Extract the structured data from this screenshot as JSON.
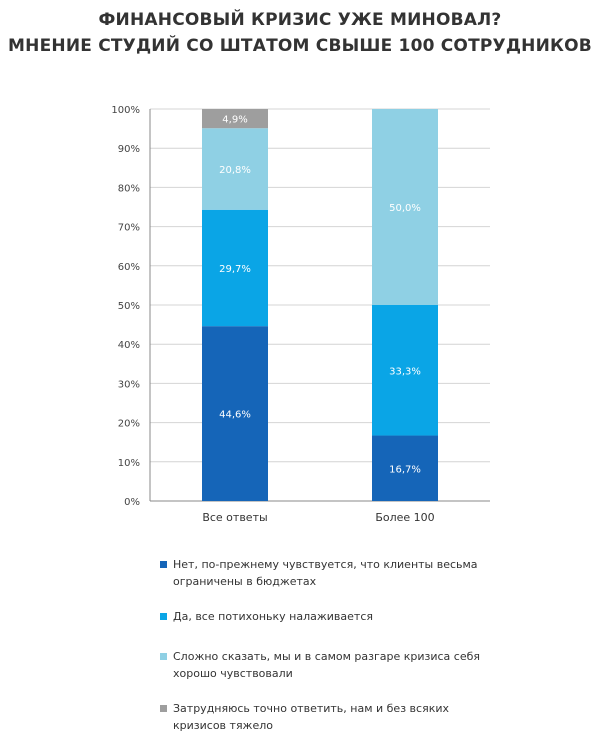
{
  "title_line1": "ФИНАНСОВЫЙ КРИЗИС УЖЕ МИНОВАЛ?",
  "title_line2": "МНЕНИЕ СТУДИЙ СО ШТАТОМ СВЫШЕ 100 СОТРУДНИКОВ",
  "chart_data": {
    "type": "bar",
    "stacked": true,
    "categories": [
      "Все ответы",
      "Более 100"
    ],
    "series": [
      {
        "name": "Нет, по-прежнему чувствуется, что клиенты весьма ограничены в бюджетах",
        "values": [
          44.6,
          16.7
        ],
        "labels": [
          "44,6%",
          "16,7%"
        ],
        "color": "#1565b8"
      },
      {
        "name": "Да, все потихоньку налаживается",
        "values": [
          29.7,
          33.3
        ],
        "labels": [
          "29,7%",
          "33,3%"
        ],
        "color": "#0aa5e6"
      },
      {
        "name": "Сложно сказать, мы и в самом разгаре кризиса себя хорошо чувствовали",
        "values": [
          20.8,
          50.0
        ],
        "labels": [
          "20,8%",
          "50,0%"
        ],
        "color": "#8fd0e4"
      },
      {
        "name": "Затрудняюсь точно ответить, нам и без всяких кризисов тяжело",
        "values": [
          4.9,
          0
        ],
        "labels": [
          "4,9%",
          ""
        ],
        "color": "#9e9e9e"
      }
    ],
    "yticks": [
      "0%",
      "10%",
      "20%",
      "30%",
      "40%",
      "50%",
      "60%",
      "70%",
      "80%",
      "90%",
      "100%"
    ],
    "ylim": [
      0,
      100
    ],
    "grid": true,
    "legend_position": "bottom"
  },
  "legend": [
    {
      "line1": "Нет, по-прежнему чувствуется, что клиенты весьма",
      "line2": "ограничены в бюджетах",
      "color": "#1565b8"
    },
    {
      "line1": "Да, все потихоньку налаживается",
      "line2": "",
      "color": "#0aa5e6"
    },
    {
      "line1": "Сложно сказать, мы и в самом разгаре кризиса себя",
      "line2": "хорошо чувствовали",
      "color": "#8fd0e4"
    },
    {
      "line1": "Затрудняюсь точно ответить, нам и без всяких",
      "line2": "кризисов тяжело",
      "color": "#9e9e9e"
    }
  ]
}
